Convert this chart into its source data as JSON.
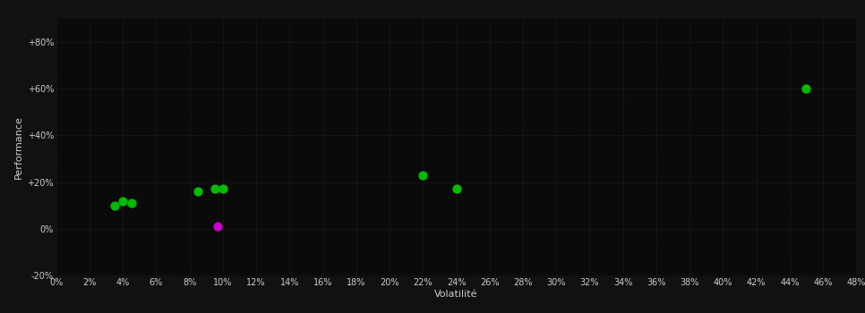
{
  "background_color": "#111111",
  "plot_bg_color": "#0a0a0a",
  "grid_color": "#2a2a2a",
  "text_color": "#cccccc",
  "xlabel": "Volatilité",
  "ylabel": "Performance",
  "xlim": [
    0.0,
    0.48
  ],
  "ylim": [
    -0.2,
    0.9
  ],
  "points_green": [
    [
      0.035,
      0.1
    ],
    [
      0.04,
      0.12
    ],
    [
      0.045,
      0.11
    ],
    [
      0.085,
      0.16
    ],
    [
      0.095,
      0.17
    ],
    [
      0.1,
      0.17
    ],
    [
      0.22,
      0.23
    ],
    [
      0.24,
      0.17
    ],
    [
      0.45,
      0.6
    ]
  ],
  "points_magenta": [
    [
      0.097,
      0.01
    ]
  ],
  "green_color": "#00bb00",
  "magenta_color": "#cc00cc",
  "marker_size": 55,
  "font_size_labels": 8,
  "font_size_ticks": 7
}
